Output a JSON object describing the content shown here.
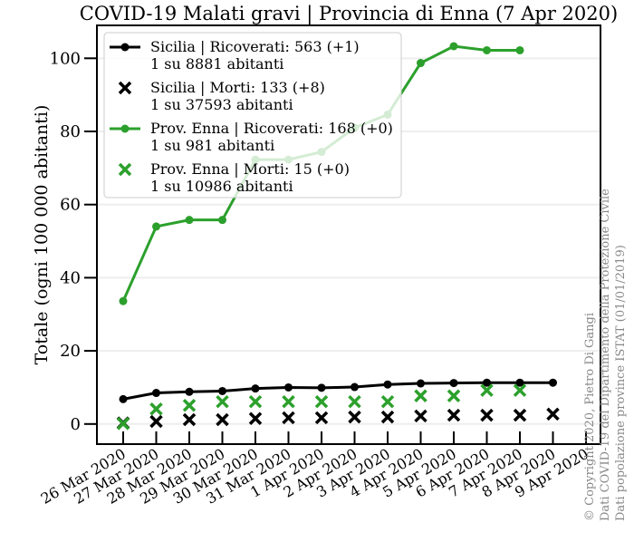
{
  "chart_data": {
    "type": "line",
    "title": "COVID-19 Malati gravi | Provincia di Enna (7 Apr 2020)",
    "y_label": "Totale (ogni 100 000 abitanti)",
    "categories": [
      "26 Mar 2020",
      "27 Mar 2020",
      "28 Mar 2020",
      "29 Mar 2020",
      "30 Mar 2020",
      "31 Mar 2020",
      "1 Apr 2020",
      "2 Apr 2020",
      "3 Apr 2020",
      "4 Apr 2020",
      "5 Apr 2020",
      "6 Apr 2020",
      "7 Apr 2020",
      "8 Apr 2020",
      "9 Apr 2020"
    ],
    "ylim": [
      -5.5,
      109
    ],
    "yticks": [
      0,
      20,
      40,
      60,
      80,
      100
    ],
    "grid": true,
    "legend": "upper left",
    "series": [
      {
        "name": "Sicilia | Ricoverati: 563 (+1)",
        "detail": "1 su 8881 abitanti",
        "color": "#000000",
        "marker": "o",
        "line": true,
        "values": [
          6.8,
          8.5,
          8.8,
          9.0,
          9.7,
          10.0,
          9.9,
          10.1,
          10.8,
          11.1,
          11.2,
          11.3,
          11.3,
          11.3,
          null
        ]
      },
      {
        "name": "Sicilia | Morti: 133 (+8)",
        "detail": "1 su 37593 abitanti",
        "color": "#000000",
        "marker": "x",
        "line": false,
        "values": [
          0.3,
          0.7,
          1.2,
          1.2,
          1.5,
          1.7,
          1.7,
          1.9,
          1.9,
          2.2,
          2.4,
          2.4,
          2.4,
          2.7,
          null
        ]
      },
      {
        "name": "Prov. Enna | Ricoverati: 168 (+0)",
        "detail": "1 su 981 abitanti",
        "color": "#2ca02c",
        "marker": "o",
        "line": true,
        "values": [
          33.6,
          54.0,
          55.8,
          55.8,
          72.3,
          72.3,
          74.4,
          81.0,
          84.6,
          98.7,
          103.3,
          102.2,
          102.2,
          null,
          null
        ]
      },
      {
        "name": "Prov. Enna | Morti: 15 (+0)",
        "detail": "1 su 10986 abitanti",
        "color": "#2ca02c",
        "marker": "x",
        "line": false,
        "values": [
          0.1,
          4.1,
          5.1,
          6.1,
          6.1,
          6.1,
          6.1,
          6.1,
          6.1,
          7.7,
          7.7,
          9.2,
          9.2,
          null,
          null
        ]
      }
    ],
    "annotations": [
      "© Copyright 2020, Pietro Di Gangi",
      "Dati COVID-19 del Dipartimento della Protezione Civile",
      "Dati popolazione province ISTAT (01/01/2019)"
    ]
  }
}
